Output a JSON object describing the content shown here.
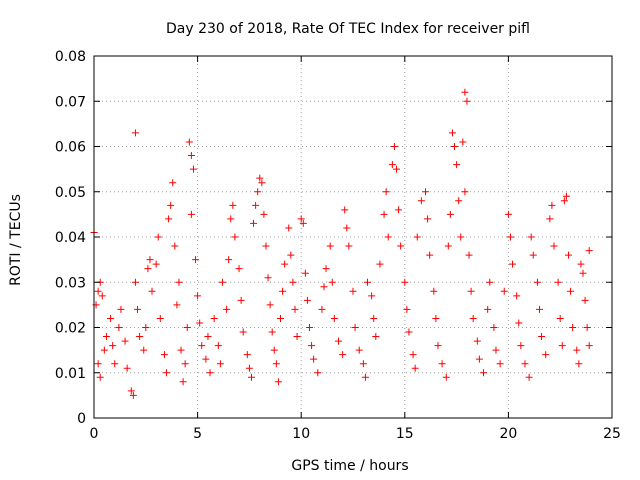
{
  "chart_data": {
    "type": "scatter",
    "title": "Day 230 of 2018, Rate Of TEC Index for receiver pifl",
    "xlabel": "GPS time / hours",
    "ylabel": "ROTI / TECUs",
    "xlim": [
      0,
      25
    ],
    "ylim": [
      0,
      0.08
    ],
    "xticks": [
      0,
      5,
      10,
      15,
      20,
      25
    ],
    "yticks": [
      0,
      0.01,
      0.02,
      0.03,
      0.04,
      0.05,
      0.06,
      0.07,
      0.08
    ],
    "xtick_labels": [
      "0",
      "5",
      "10",
      "15",
      "20",
      "25"
    ],
    "ytick_labels": [
      "0",
      "0.01",
      "0.02",
      "0.03",
      "0.04",
      "0.05",
      "0.06",
      "0.07",
      "0.08"
    ],
    "grid": true,
    "marker": "+",
    "marker_color": "#ff0000",
    "series": [
      {
        "name": "pifl",
        "points": [
          [
            0.0,
            0.041
          ],
          [
            0.1,
            0.025
          ],
          [
            0.2,
            0.028
          ],
          [
            0.3,
            0.03
          ],
          [
            0.4,
            0.027
          ],
          [
            0.2,
            0.012
          ],
          [
            0.3,
            0.009
          ],
          [
            0.5,
            0.015
          ],
          [
            0.6,
            0.018
          ],
          [
            0.8,
            0.022
          ],
          [
            0.9,
            0.016
          ],
          [
            1.0,
            0.012
          ],
          [
            1.2,
            0.02
          ],
          [
            1.3,
            0.024
          ],
          [
            1.5,
            0.017
          ],
          [
            1.6,
            0.011
          ],
          [
            1.8,
            0.006
          ],
          [
            1.9,
            0.005
          ],
          [
            2.0,
            0.03
          ],
          [
            2.1,
            0.024
          ],
          [
            2.0,
            0.063
          ],
          [
            2.2,
            0.018
          ],
          [
            2.4,
            0.015
          ],
          [
            2.5,
            0.02
          ],
          [
            2.6,
            0.033
          ],
          [
            2.7,
            0.035
          ],
          [
            2.8,
            0.028
          ],
          [
            3.0,
            0.034
          ],
          [
            3.1,
            0.04
          ],
          [
            3.2,
            0.022
          ],
          [
            3.4,
            0.014
          ],
          [
            3.5,
            0.01
          ],
          [
            3.6,
            0.044
          ],
          [
            3.7,
            0.047
          ],
          [
            3.8,
            0.052
          ],
          [
            3.9,
            0.038
          ],
          [
            4.0,
            0.025
          ],
          [
            4.1,
            0.03
          ],
          [
            4.2,
            0.015
          ],
          [
            4.3,
            0.008
          ],
          [
            4.4,
            0.012
          ],
          [
            4.5,
            0.02
          ],
          [
            4.6,
            0.061
          ],
          [
            4.7,
            0.058
          ],
          [
            4.8,
            0.055
          ],
          [
            4.7,
            0.045
          ],
          [
            4.9,
            0.035
          ],
          [
            5.0,
            0.027
          ],
          [
            5.1,
            0.021
          ],
          [
            5.2,
            0.016
          ],
          [
            5.4,
            0.013
          ],
          [
            5.5,
            0.018
          ],
          [
            5.6,
            0.01
          ],
          [
            5.8,
            0.022
          ],
          [
            6.0,
            0.016
          ],
          [
            6.1,
            0.012
          ],
          [
            6.2,
            0.03
          ],
          [
            6.4,
            0.024
          ],
          [
            6.5,
            0.035
          ],
          [
            6.6,
            0.044
          ],
          [
            6.7,
            0.047
          ],
          [
            6.8,
            0.04
          ],
          [
            7.0,
            0.033
          ],
          [
            7.1,
            0.026
          ],
          [
            7.2,
            0.019
          ],
          [
            7.4,
            0.014
          ],
          [
            7.5,
            0.011
          ],
          [
            7.6,
            0.009
          ],
          [
            7.7,
            0.043
          ],
          [
            7.8,
            0.047
          ],
          [
            7.9,
            0.05
          ],
          [
            8.0,
            0.053
          ],
          [
            8.1,
            0.052
          ],
          [
            8.2,
            0.045
          ],
          [
            8.3,
            0.038
          ],
          [
            8.4,
            0.031
          ],
          [
            8.5,
            0.025
          ],
          [
            8.6,
            0.019
          ],
          [
            8.7,
            0.015
          ],
          [
            8.8,
            0.012
          ],
          [
            8.9,
            0.008
          ],
          [
            9.0,
            0.022
          ],
          [
            9.1,
            0.028
          ],
          [
            9.2,
            0.034
          ],
          [
            9.4,
            0.042
          ],
          [
            9.5,
            0.036
          ],
          [
            9.6,
            0.03
          ],
          [
            9.7,
            0.024
          ],
          [
            9.8,
            0.018
          ],
          [
            10.0,
            0.044
          ],
          [
            10.1,
            0.043
          ],
          [
            10.2,
            0.032
          ],
          [
            10.3,
            0.026
          ],
          [
            10.4,
            0.02
          ],
          [
            10.5,
            0.016
          ],
          [
            10.6,
            0.013
          ],
          [
            10.8,
            0.01
          ],
          [
            11.0,
            0.024
          ],
          [
            11.1,
            0.029
          ],
          [
            11.2,
            0.033
          ],
          [
            11.4,
            0.038
          ],
          [
            11.5,
            0.03
          ],
          [
            11.6,
            0.022
          ],
          [
            11.8,
            0.017
          ],
          [
            12.0,
            0.014
          ],
          [
            12.1,
            0.046
          ],
          [
            12.2,
            0.042
          ],
          [
            12.3,
            0.038
          ],
          [
            12.5,
            0.028
          ],
          [
            12.6,
            0.02
          ],
          [
            12.8,
            0.015
          ],
          [
            13.0,
            0.012
          ],
          [
            13.1,
            0.009
          ],
          [
            13.2,
            0.03
          ],
          [
            13.4,
            0.027
          ],
          [
            13.5,
            0.022
          ],
          [
            13.6,
            0.018
          ],
          [
            13.8,
            0.034
          ],
          [
            14.0,
            0.045
          ],
          [
            14.1,
            0.05
          ],
          [
            14.2,
            0.04
          ],
          [
            14.4,
            0.056
          ],
          [
            14.5,
            0.06
          ],
          [
            14.6,
            0.055
          ],
          [
            14.7,
            0.046
          ],
          [
            14.8,
            0.038
          ],
          [
            15.0,
            0.03
          ],
          [
            15.1,
            0.024
          ],
          [
            15.2,
            0.019
          ],
          [
            15.4,
            0.014
          ],
          [
            15.5,
            0.011
          ],
          [
            15.6,
            0.04
          ],
          [
            15.8,
            0.048
          ],
          [
            16.0,
            0.05
          ],
          [
            16.1,
            0.044
          ],
          [
            16.2,
            0.036
          ],
          [
            16.4,
            0.028
          ],
          [
            16.5,
            0.022
          ],
          [
            16.6,
            0.016
          ],
          [
            16.8,
            0.012
          ],
          [
            17.0,
            0.009
          ],
          [
            17.1,
            0.038
          ],
          [
            17.2,
            0.045
          ],
          [
            17.3,
            0.063
          ],
          [
            17.4,
            0.06
          ],
          [
            17.5,
            0.056
          ],
          [
            17.6,
            0.048
          ],
          [
            17.7,
            0.04
          ],
          [
            17.8,
            0.061
          ],
          [
            17.9,
            0.072
          ],
          [
            18.0,
            0.07
          ],
          [
            17.9,
            0.05
          ],
          [
            18.1,
            0.036
          ],
          [
            18.2,
            0.028
          ],
          [
            18.3,
            0.022
          ],
          [
            18.5,
            0.017
          ],
          [
            18.6,
            0.013
          ],
          [
            18.8,
            0.01
          ],
          [
            19.0,
            0.024
          ],
          [
            19.1,
            0.03
          ],
          [
            19.3,
            0.02
          ],
          [
            19.4,
            0.015
          ],
          [
            19.6,
            0.012
          ],
          [
            19.8,
            0.028
          ],
          [
            20.0,
            0.045
          ],
          [
            20.1,
            0.04
          ],
          [
            20.2,
            0.034
          ],
          [
            20.4,
            0.027
          ],
          [
            20.5,
            0.021
          ],
          [
            20.6,
            0.016
          ],
          [
            20.8,
            0.012
          ],
          [
            21.0,
            0.009
          ],
          [
            21.1,
            0.04
          ],
          [
            21.2,
            0.036
          ],
          [
            21.4,
            0.03
          ],
          [
            21.5,
            0.024
          ],
          [
            21.6,
            0.018
          ],
          [
            21.8,
            0.014
          ],
          [
            22.0,
            0.044
          ],
          [
            22.1,
            0.047
          ],
          [
            22.2,
            0.038
          ],
          [
            22.4,
            0.03
          ],
          [
            22.5,
            0.022
          ],
          [
            22.6,
            0.016
          ],
          [
            22.7,
            0.048
          ],
          [
            22.8,
            0.049
          ],
          [
            22.9,
            0.036
          ],
          [
            23.0,
            0.028
          ],
          [
            23.1,
            0.02
          ],
          [
            23.3,
            0.015
          ],
          [
            23.4,
            0.012
          ],
          [
            23.5,
            0.034
          ],
          [
            23.6,
            0.032
          ],
          [
            23.7,
            0.026
          ],
          [
            23.8,
            0.02
          ],
          [
            23.9,
            0.037
          ],
          [
            23.9,
            0.016
          ]
        ]
      }
    ]
  }
}
